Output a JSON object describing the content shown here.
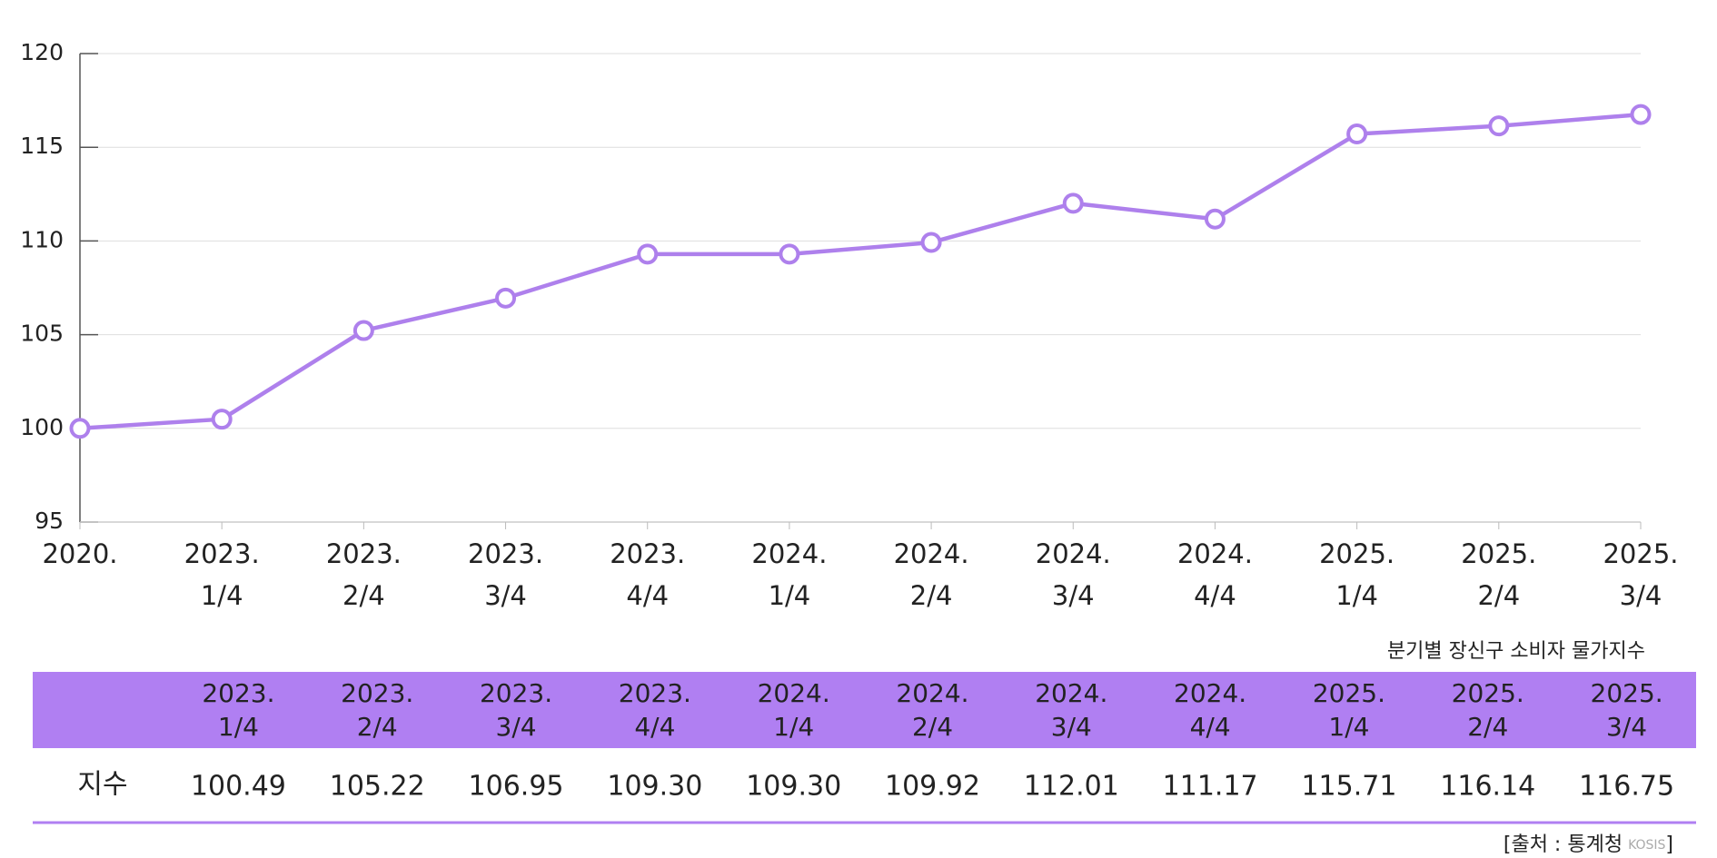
{
  "chart_data": {
    "type": "line",
    "categories": [
      [
        "2020."
      ],
      [
        "2023.",
        "1/4"
      ],
      [
        "2023.",
        "2/4"
      ],
      [
        "2023.",
        "3/4"
      ],
      [
        "2023.",
        "4/4"
      ],
      [
        "2024.",
        "1/4"
      ],
      [
        "2024.",
        "2/4"
      ],
      [
        "2024.",
        "3/4"
      ],
      [
        "2024.",
        "4/4"
      ],
      [
        "2025.",
        "1/4"
      ],
      [
        "2025.",
        "2/4"
      ],
      [
        "2025.",
        "3/4"
      ]
    ],
    "series": [
      {
        "name": "지수",
        "color": "#ae80ec",
        "values": [
          100,
          100.49,
          105.22,
          106.95,
          109.3,
          109.3,
          109.92,
          112.01,
          111.17,
          115.71,
          116.14,
          116.75
        ]
      }
    ],
    "ylim": [
      95,
      120
    ],
    "yticks": [
      95,
      100,
      105,
      110,
      115,
      120
    ],
    "grid": true
  },
  "caption": "분기별 장신구 소비자 물가지수",
  "table": {
    "header_color": "#b07ff2",
    "columns": [
      [
        "2023.",
        "1/4"
      ],
      [
        "2023.",
        "2/4"
      ],
      [
        "2023.",
        "3/4"
      ],
      [
        "2023.",
        "4/4"
      ],
      [
        "2024.",
        "1/4"
      ],
      [
        "2024.",
        "2/4"
      ],
      [
        "2024.",
        "3/4"
      ],
      [
        "2024.",
        "4/4"
      ],
      [
        "2025.",
        "1/4"
      ],
      [
        "2025.",
        "2/4"
      ],
      [
        "2025.",
        "3/4"
      ]
    ],
    "row_label": "지수",
    "cells": [
      "100.49",
      "105.22",
      "106.95",
      "109.30",
      "109.30",
      "109.92",
      "112.01",
      "111.17",
      "115.71",
      "116.14",
      "116.75"
    ]
  },
  "source": {
    "prefix": "[출처 : 통계청",
    "logo": "KOSIS",
    "suffix": "]"
  }
}
